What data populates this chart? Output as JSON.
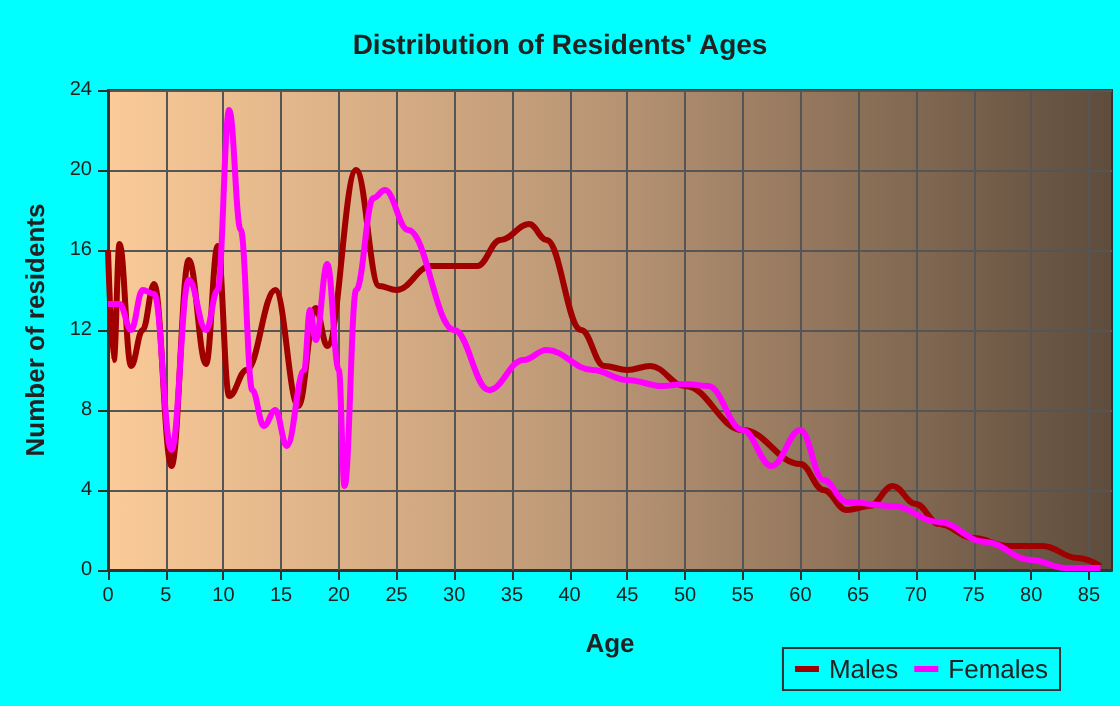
{
  "chart_data": {
    "type": "line",
    "title": "Distribution of Residents' Ages",
    "xlabel": "Age",
    "ylabel": "Number of residents",
    "xlim": [
      0,
      87
    ],
    "xticks": [
      0,
      5,
      10,
      15,
      20,
      25,
      30,
      35,
      40,
      45,
      50,
      55,
      60,
      65,
      70,
      75,
      80,
      85
    ],
    "ylim": [
      0,
      24
    ],
    "yticks": [
      0,
      4,
      8,
      12,
      16,
      20,
      24
    ],
    "grid": true,
    "legend": "bottom right",
    "marker": "none",
    "line_style": "solid",
    "series": [
      {
        "name": "Males",
        "color": "#a00000",
        "x": [
          0,
          0.5,
          1,
          2,
          3,
          4,
          5.5,
          7,
          8.5,
          9.5,
          10.5,
          12,
          14.5,
          16.5,
          18,
          19,
          21.5,
          23.5,
          25,
          28,
          32,
          34,
          36.5,
          38,
          41,
          43,
          45,
          47,
          50,
          55,
          60,
          62,
          64,
          66,
          68,
          70,
          72,
          75,
          78,
          81,
          84,
          86
        ],
        "values": [
          16,
          10.5,
          16.3,
          10.2,
          12,
          14.3,
          5.2,
          15.5,
          10.3,
          16.2,
          8.7,
          10,
          14,
          8.2,
          13.1,
          11.2,
          20,
          14.2,
          14,
          15.2,
          15.2,
          16.5,
          17.3,
          16.5,
          12,
          10.2,
          10,
          10.2,
          9.2,
          7,
          5.3,
          4,
          3,
          3.2,
          4.2,
          3.3,
          2.3,
          1.6,
          1.2,
          1.2,
          0.6,
          0.2
        ]
      },
      {
        "name": "Females",
        "color": "#ff00ff",
        "x": [
          0,
          1,
          2,
          3,
          4,
          5.5,
          7,
          8.5,
          9.5,
          10.5,
          11.5,
          12.5,
          13.5,
          14.5,
          15.5,
          17,
          17.5,
          18,
          19,
          20,
          20.5,
          21.5,
          23,
          24,
          26,
          30,
          33,
          36,
          38,
          42,
          45,
          48,
          50,
          52,
          55,
          57.5,
          60,
          62,
          64,
          68,
          72,
          76,
          80,
          83,
          86
        ],
        "values": [
          13.3,
          13.3,
          12,
          14,
          13.8,
          6,
          14.5,
          12,
          14,
          23,
          17,
          9,
          7.2,
          8,
          6.2,
          10,
          13,
          11.5,
          15.3,
          10,
          4.2,
          14,
          18.6,
          19,
          17,
          12,
          9,
          10.5,
          11,
          10,
          9.5,
          9.2,
          9.3,
          9.2,
          7,
          5.2,
          7,
          4.5,
          3.4,
          3.2,
          2.4,
          1.4,
          0.5,
          0.1,
          0.1
        ]
      }
    ]
  }
}
